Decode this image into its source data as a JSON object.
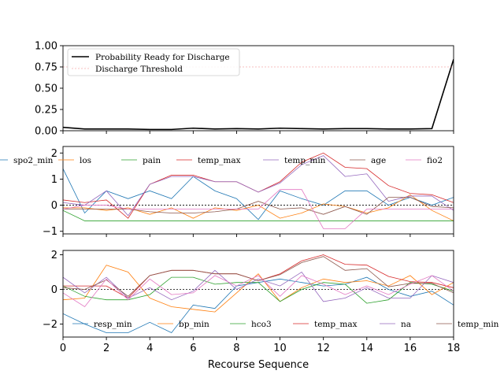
{
  "chart_data": [
    {
      "type": "line",
      "xlim": [
        0,
        18
      ],
      "ylim": [
        0,
        1
      ],
      "yticks": [
        0.0,
        0.25,
        0.5,
        0.75,
        1.0
      ],
      "ytick_labels": [
        "0.00",
        "0.25",
        "0.50",
        "0.75",
        "1.00"
      ],
      "legend": "top-left",
      "series": [
        {
          "name": "Probability Ready for Discharge",
          "color": "#000000",
          "x": [
            0,
            1,
            2,
            3,
            4,
            5,
            6,
            7,
            8,
            9,
            10,
            11,
            12,
            13,
            14,
            15,
            16,
            17,
            18
          ],
          "values": [
            0.04,
            0.02,
            0.02,
            0.02,
            0.015,
            0.015,
            0.03,
            0.02,
            0.025,
            0.02,
            0.03,
            0.025,
            0.02,
            0.025,
            0.025,
            0.02,
            0.02,
            0.025,
            0.84
          ]
        },
        {
          "name": "Discharge Threshold",
          "color": "#f08080",
          "style": "dashed",
          "x": [
            0,
            18
          ],
          "values": [
            0.75,
            0.75
          ]
        }
      ]
    },
    {
      "type": "line",
      "xlim": [
        0,
        18
      ],
      "ylim": [
        -1.1,
        2.25
      ],
      "yticks": [
        -1,
        0,
        1,
        2
      ],
      "ytick_labels": [
        "−1",
        "0",
        "1",
        "2"
      ],
      "zero_line": true,
      "legend": "top",
      "series": [
        {
          "name": "spo2_min",
          "color": "#1f77b4",
          "values": [
            1.4,
            -0.3,
            0.55,
            0.25,
            0.55,
            0.25,
            1.1,
            0.55,
            0.25,
            -0.55,
            0.55,
            0.25,
            0.0,
            0.55,
            0.55,
            0.0,
            0.3,
            0.0,
            0.3
          ]
        },
        {
          "name": "los",
          "color": "#ff7f0e",
          "values": [
            -0.1,
            -0.1,
            -0.2,
            -0.1,
            -0.35,
            -0.1,
            -0.5,
            -0.1,
            -0.2,
            0.0,
            -0.5,
            -0.3,
            0.05,
            -0.05,
            -0.3,
            -0.1,
            0.4,
            -0.2,
            -0.6
          ]
        },
        {
          "name": "pain",
          "color": "#2ca02c",
          "values": [
            -0.2,
            -0.6,
            -0.6,
            -0.6,
            -0.6,
            -0.6,
            -0.6,
            -0.6,
            -0.6,
            -0.6,
            -0.6,
            -0.6,
            -0.6,
            -0.6,
            -0.6,
            -0.6,
            -0.6,
            -0.6,
            -0.6
          ]
        },
        {
          "name": "temp_max",
          "color": "#d62728",
          "values": [
            0.2,
            0.1,
            0.2,
            -0.5,
            0.8,
            1.15,
            1.15,
            0.9,
            0.9,
            0.5,
            0.9,
            1.65,
            2.0,
            1.45,
            1.4,
            0.75,
            0.45,
            0.4,
            0.1
          ]
        },
        {
          "name": "temp_min",
          "color": "#9467bd",
          "values": [
            0.1,
            0.0,
            0.55,
            -0.4,
            0.8,
            1.1,
            1.1,
            0.9,
            0.9,
            0.5,
            0.85,
            1.55,
            1.9,
            1.1,
            1.2,
            0.15,
            0.35,
            0.35,
            -0.2
          ]
        },
        {
          "name": "age",
          "color": "#8c564b",
          "values": [
            -0.15,
            -0.15,
            -0.15,
            -0.15,
            -0.25,
            -0.3,
            -0.3,
            -0.25,
            -0.15,
            0.15,
            -0.15,
            -0.1,
            -0.35,
            -0.05,
            -0.35,
            0.3,
            0.3,
            -0.05,
            -0.1
          ]
        },
        {
          "name": "fio2",
          "color": "#e377c2",
          "values": [
            -0.15,
            0.0,
            0.0,
            -0.15,
            -0.15,
            -0.15,
            -0.15,
            -0.15,
            -0.15,
            -0.15,
            0.6,
            0.6,
            -0.9,
            -0.9,
            -0.15,
            -0.15,
            -0.15,
            -0.15,
            -0.15
          ]
        }
      ]
    },
    {
      "type": "line",
      "xlim": [
        0,
        18
      ],
      "ylim": [
        -2.75,
        2.25
      ],
      "yticks": [
        -2,
        0,
        2
      ],
      "ytick_labels": [
        "−2",
        "0",
        "2"
      ],
      "xticks": [
        0,
        2,
        4,
        6,
        8,
        10,
        12,
        14,
        16,
        18
      ],
      "xtick_labels": [
        "0",
        "2",
        "4",
        "6",
        "8",
        "10",
        "12",
        "14",
        "16",
        "18"
      ],
      "xlabel": "Recourse Sequence",
      "zero_line": true,
      "legend": "bottom",
      "series": [
        {
          "name": "resp_min",
          "color": "#1f77b4",
          "values": [
            -1.4,
            -2.0,
            -2.5,
            -2.5,
            -1.9,
            -2.5,
            -0.9,
            -1.1,
            0.2,
            0.4,
            0.6,
            0.4,
            0.2,
            0.3,
            0.7,
            0.0,
            -0.4,
            -0.1,
            -0.9
          ]
        },
        {
          "name": "bp_min",
          "color": "#ff7f0e",
          "values": [
            -0.6,
            -0.5,
            1.4,
            1.0,
            -0.5,
            -1.0,
            -1.15,
            -1.3,
            -0.2,
            0.9,
            -0.7,
            0.1,
            0.6,
            0.4,
            0.5,
            0.2,
            0.8,
            -0.3,
            0.4
          ]
        },
        {
          "name": "hco3",
          "color": "#2ca02c",
          "values": [
            0.2,
            -0.4,
            -0.6,
            -0.6,
            -0.3,
            0.7,
            0.7,
            0.3,
            0.4,
            0.4,
            -0.7,
            0.0,
            0.4,
            0.3,
            -0.8,
            -0.6,
            0.4,
            0.3,
            -0.1
          ]
        },
        {
          "name": "temp_max",
          "color": "#d62728",
          "values": [
            0.2,
            0.2,
            0.2,
            -0.5,
            0.8,
            1.1,
            1.1,
            0.9,
            0.9,
            0.5,
            0.9,
            1.65,
            2.0,
            1.45,
            1.4,
            0.75,
            0.45,
            0.4,
            0.1
          ]
        },
        {
          "name": "na",
          "color": "#9467bd",
          "values": [
            0.7,
            -0.2,
            0.7,
            -0.5,
            0.1,
            -0.6,
            -0.1,
            1.1,
            0.0,
            0.6,
            0.2,
            1.0,
            -0.7,
            -0.5,
            0.1,
            -0.5,
            -0.5,
            0.8,
            0.4
          ]
        },
        {
          "name": "temp_min",
          "color": "#8c564b",
          "values": [
            0.1,
            0.0,
            0.55,
            -0.4,
            0.8,
            1.1,
            1.1,
            0.9,
            0.9,
            0.5,
            0.85,
            1.55,
            1.9,
            1.1,
            1.2,
            0.15,
            0.35,
            0.35,
            -0.2
          ]
        },
        {
          "name": "",
          "color": "#e377c2",
          "values": [
            -0.2,
            -1.0,
            0.6,
            -0.6,
            0.6,
            -0.3,
            -0.2,
            0.8,
            0.2,
            0.8,
            -0.4,
            0.8,
            0.3,
            -0.3,
            0.2,
            -0.3,
            0.3,
            0.8,
            -0.1
          ]
        }
      ]
    }
  ]
}
